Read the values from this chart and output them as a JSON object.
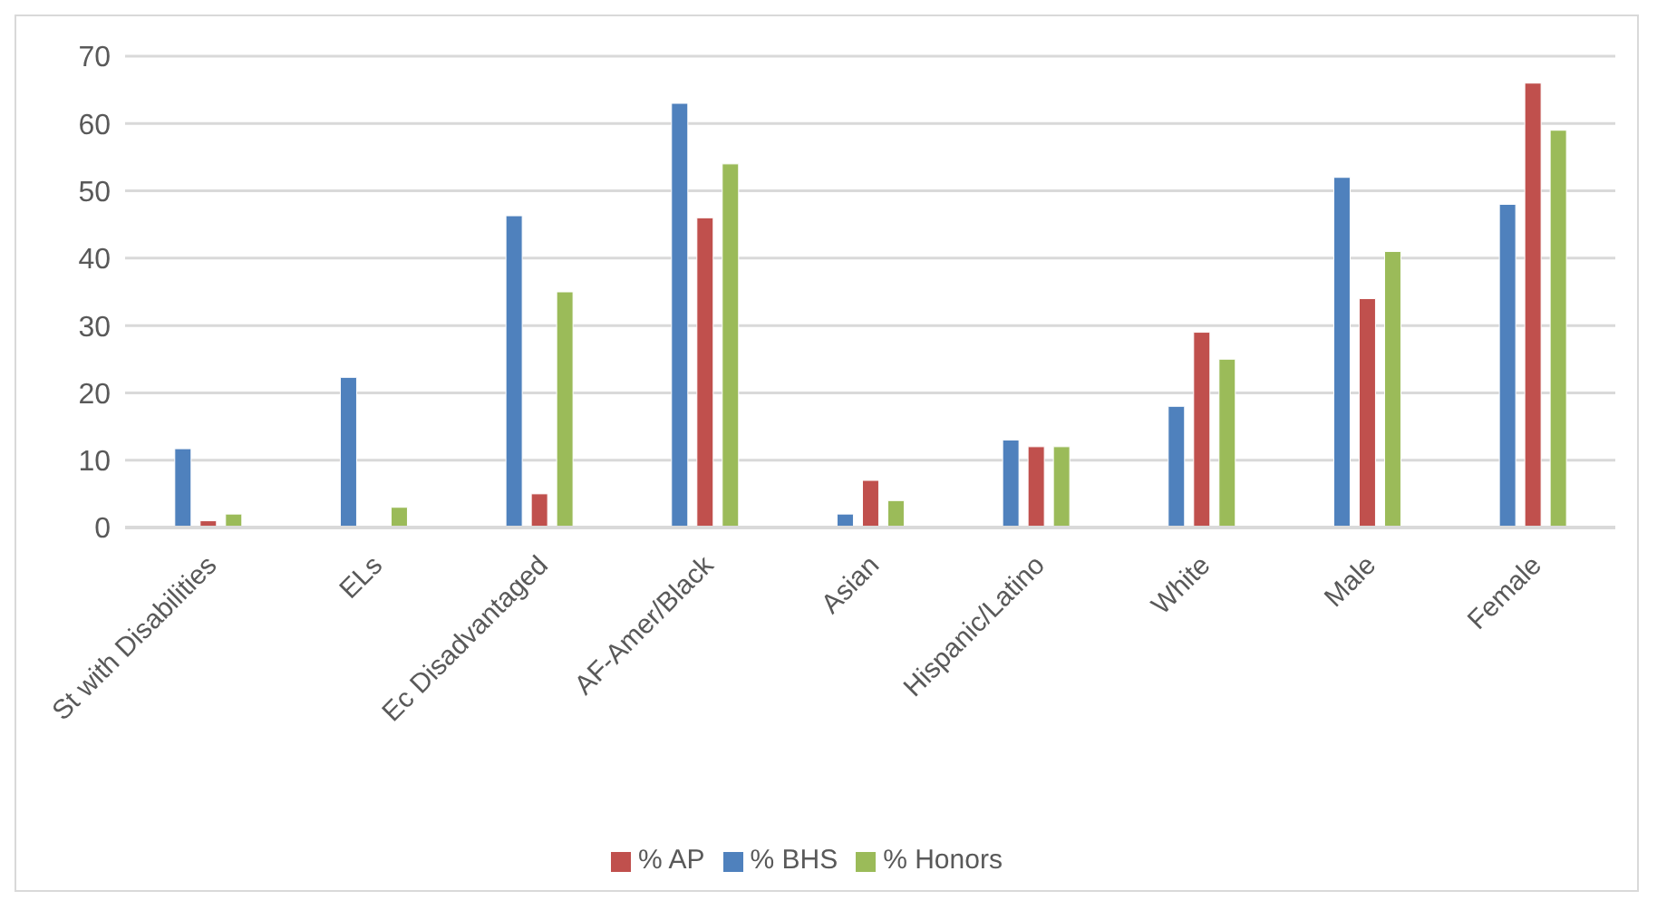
{
  "chart_data": {
    "type": "bar",
    "categories": [
      "St with Disabilities",
      "ELs",
      "Ec Disadvantaged",
      "AF-Amer/Black",
      "Asian",
      "Hispanic/Latino",
      "White",
      "Male",
      "Female"
    ],
    "series": [
      {
        "name": "% BHS",
        "color": "#4f81bd",
        "values": [
          11.7,
          22.3,
          46.3,
          63,
          2,
          13,
          18,
          52,
          48
        ]
      },
      {
        "name": "% AP",
        "color": "#c0504d",
        "values": [
          1,
          0,
          5,
          46,
          7,
          12,
          29,
          34,
          66
        ]
      },
      {
        "name": "% Honors",
        "color": "#9bbb59",
        "values": [
          2,
          3,
          35,
          54,
          4,
          12,
          25,
          41,
          59
        ]
      }
    ],
    "ylim": [
      0,
      70
    ],
    "yticks": [
      0,
      10,
      20,
      30,
      40,
      50,
      60,
      70
    ],
    "grid": "y",
    "legend": "bottom"
  }
}
